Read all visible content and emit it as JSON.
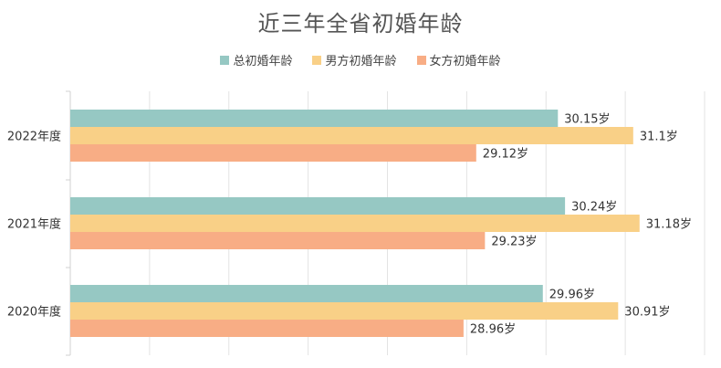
{
  "chart_data": {
    "type": "bar",
    "orientation": "horizontal",
    "title": "近三年全省初婚年龄",
    "categories": [
      "2022年度",
      "2021年度",
      "2020年度"
    ],
    "series": [
      {
        "name": "总初婚年龄",
        "color": "#96c8c3",
        "values": [
          30.15,
          30.24,
          29.96
        ],
        "labels": [
          "30.15岁",
          "30.24岁",
          "29.96岁"
        ]
      },
      {
        "name": "男方初婚年龄",
        "color": "#f9d087",
        "values": [
          31.1,
          31.18,
          30.91
        ],
        "labels": [
          "31.1岁",
          "31.18岁",
          "30.91岁"
        ]
      },
      {
        "name": "女方初婚年龄",
        "color": "#f8ad85",
        "values": [
          29.12,
          29.23,
          28.96
        ],
        "labels": [
          "29.12岁",
          "29.23岁",
          "28.96岁"
        ]
      }
    ],
    "xlim": [
      24,
      32
    ],
    "grid": true,
    "legend_position": "top"
  }
}
